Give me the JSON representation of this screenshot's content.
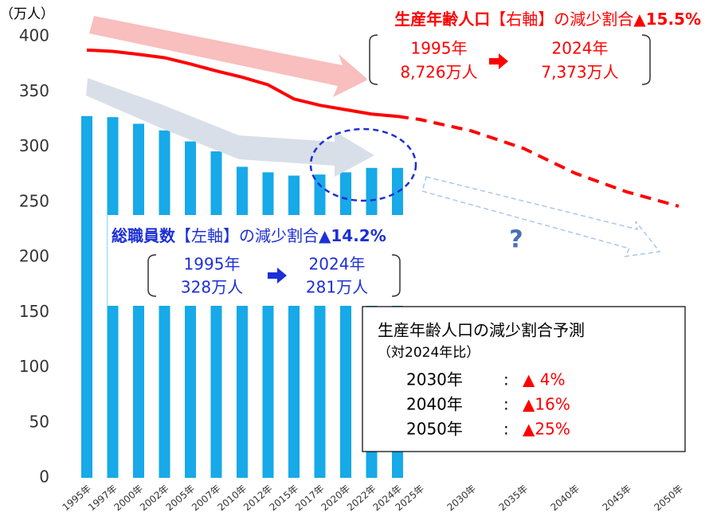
{
  "chart_data": {
    "type": "bar_line",
    "y_unit": "（万人）",
    "categories": [
      "1995年",
      "1997年",
      "2000年",
      "2002年",
      "2005年",
      "2007年",
      "2010年",
      "2012年",
      "2015年",
      "2017年",
      "2020年",
      "2022年",
      "2024年",
      "2025年",
      "2030年",
      "2035年",
      "2040年",
      "2045年",
      "2050年"
    ],
    "series": [
      {
        "type": "bar",
        "color": "#17a9e8",
        "values": [
          328,
          327,
          321,
          315,
          305,
          296,
          282,
          277,
          274,
          275,
          277,
          281,
          281,
          null,
          null,
          null,
          null,
          null,
          null
        ]
      },
      {
        "type": "line",
        "axis": "y2",
        "color": "#ff0000",
        "values": [
          8726,
          8700,
          8638,
          8570,
          8442,
          8300,
          8173,
          8018,
          7728,
          7600,
          7509,
          7420,
          7373,
          7310,
          7076,
          6722,
          6213,
          5832,
          5540
        ]
      }
    ],
    "ylim": [
      0,
      400
    ],
    "yticks": [
      0,
      50,
      100,
      150,
      200,
      250,
      300,
      350,
      400
    ],
    "y2lim": [
      0,
      9000
    ],
    "annotations": {
      "red_title": [
        "生産年齢人口",
        "【右軸】の減少割合",
        "▲15.5%"
      ],
      "red_box": [
        "1995年",
        "8,726万人",
        "2024年",
        "7,373万人"
      ],
      "blue_title": [
        "総職員数",
        "【左軸】の減少割合",
        "▲14.2%"
      ],
      "blue_box": [
        "1995年",
        "328万人",
        "2024年",
        "281万人"
      ],
      "question": "?",
      "forecast_title": "生産年齢人口の減少割合予測",
      "forecast_sub": "（対2024年比）",
      "forecast_rows": [
        [
          "2030年",
          ":",
          "▲ 4%"
        ],
        [
          "2040年",
          ":",
          "▲16%"
        ],
        [
          "2050年",
          ":",
          "▲25%"
        ]
      ]
    }
  }
}
